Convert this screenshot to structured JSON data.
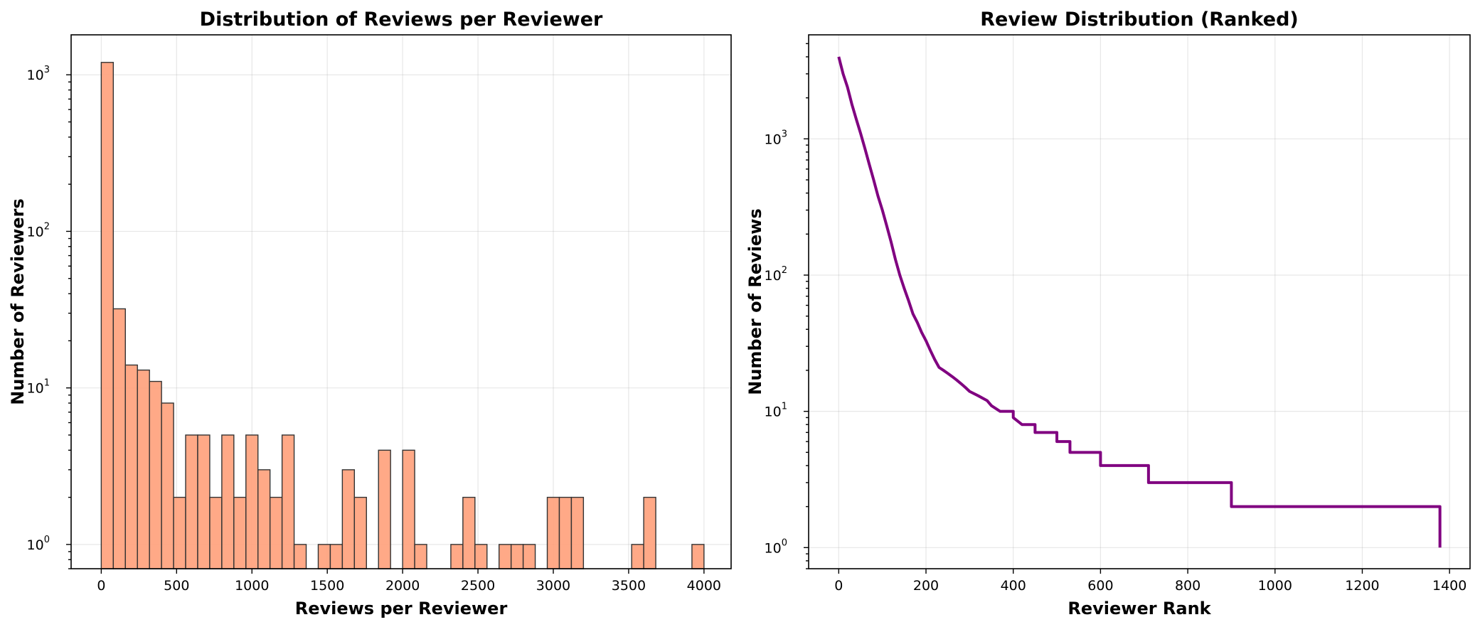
{
  "chart_data": [
    {
      "type": "bar",
      "title": "Distribution of Reviews per Reviewer",
      "xlabel": "Reviews per Reviewer",
      "ylabel": "Number of Reviewers",
      "y_scale": "log",
      "xlim": [
        -200,
        4180
      ],
      "ylim": [
        0.7,
        1800
      ],
      "grid": true,
      "color": "#FFA07A",
      "edge_color": "#333333",
      "bin_width": 80,
      "x_ticks": [
        0,
        500,
        1000,
        1500,
        2000,
        2500,
        3000,
        3500,
        4000
      ],
      "x_tick_labels": [
        "0",
        "500",
        "1000",
        "1500",
        "2000",
        "2500",
        "3000",
        "3500",
        "4000"
      ],
      "y_ticks": [
        1,
        10,
        100,
        1000
      ],
      "y_tick_labels": [
        {
          "base": "10",
          "exp": "0"
        },
        {
          "base": "10",
          "exp": "1"
        },
        {
          "base": "10",
          "exp": "2"
        },
        {
          "base": "10",
          "exp": "3"
        }
      ],
      "bins": [
        {
          "x": 0,
          "count": 1200
        },
        {
          "x": 80,
          "count": 32
        },
        {
          "x": 160,
          "count": 14
        },
        {
          "x": 240,
          "count": 13
        },
        {
          "x": 320,
          "count": 11
        },
        {
          "x": 400,
          "count": 8
        },
        {
          "x": 480,
          "count": 2
        },
        {
          "x": 560,
          "count": 5
        },
        {
          "x": 640,
          "count": 5
        },
        {
          "x": 720,
          "count": 2
        },
        {
          "x": 800,
          "count": 5
        },
        {
          "x": 880,
          "count": 2
        },
        {
          "x": 960,
          "count": 5
        },
        {
          "x": 1040,
          "count": 3
        },
        {
          "x": 1120,
          "count": 2
        },
        {
          "x": 1200,
          "count": 5
        },
        {
          "x": 1280,
          "count": 1
        },
        {
          "x": 1440,
          "count": 1
        },
        {
          "x": 1520,
          "count": 1
        },
        {
          "x": 1600,
          "count": 3
        },
        {
          "x": 1680,
          "count": 2
        },
        {
          "x": 1840,
          "count": 4
        },
        {
          "x": 2000,
          "count": 4
        },
        {
          "x": 2080,
          "count": 1
        },
        {
          "x": 2320,
          "count": 1
        },
        {
          "x": 2400,
          "count": 2
        },
        {
          "x": 2480,
          "count": 1
        },
        {
          "x": 2640,
          "count": 1
        },
        {
          "x": 2720,
          "count": 1
        },
        {
          "x": 2800,
          "count": 1
        },
        {
          "x": 2960,
          "count": 2
        },
        {
          "x": 3040,
          "count": 2
        },
        {
          "x": 3120,
          "count": 2
        },
        {
          "x": 3520,
          "count": 1
        },
        {
          "x": 3600,
          "count": 2
        },
        {
          "x": 3920,
          "count": 1
        }
      ]
    },
    {
      "type": "line",
      "title": "Review Distribution (Ranked)",
      "xlabel": "Reviewer Rank",
      "ylabel": "Number of Reviews",
      "y_scale": "log",
      "xlim": [
        -69,
        1447
      ],
      "ylim": [
        0.7,
        5800
      ],
      "grid": true,
      "color": "#800080",
      "x_ticks": [
        0,
        200,
        400,
        600,
        800,
        1000,
        1200,
        1400
      ],
      "x_tick_labels": [
        "0",
        "200",
        "400",
        "600",
        "800",
        "1000",
        "1200",
        "1400"
      ],
      "y_ticks": [
        1,
        10,
        100,
        1000
      ],
      "y_tick_labels": [
        {
          "base": "10",
          "exp": "0"
        },
        {
          "base": "10",
          "exp": "1"
        },
        {
          "base": "10",
          "exp": "2"
        },
        {
          "base": "10",
          "exp": "3"
        }
      ],
      "points": [
        [
          0,
          4000
        ],
        [
          10,
          3000
        ],
        [
          20,
          2400
        ],
        [
          30,
          1800
        ],
        [
          40,
          1400
        ],
        [
          50,
          1100
        ],
        [
          60,
          850
        ],
        [
          70,
          650
        ],
        [
          80,
          500
        ],
        [
          90,
          380
        ],
        [
          100,
          300
        ],
        [
          110,
          230
        ],
        [
          120,
          175
        ],
        [
          130,
          130
        ],
        [
          140,
          100
        ],
        [
          150,
          80
        ],
        [
          160,
          65
        ],
        [
          170,
          52
        ],
        [
          180,
          45
        ],
        [
          190,
          38
        ],
        [
          200,
          33
        ],
        [
          210,
          28
        ],
        [
          220,
          24
        ],
        [
          230,
          21
        ],
        [
          240,
          20
        ],
        [
          250,
          19
        ],
        [
          260,
          18
        ],
        [
          270,
          17
        ],
        [
          280,
          16
        ],
        [
          290,
          15
        ],
        [
          300,
          14
        ],
        [
          320,
          13
        ],
        [
          340,
          12
        ],
        [
          350,
          11
        ],
        [
          370,
          10
        ],
        [
          400,
          9
        ],
        [
          420,
          8
        ],
        [
          450,
          7
        ],
        [
          500,
          6
        ],
        [
          530,
          5
        ],
        [
          600,
          4
        ],
        [
          710,
          3
        ],
        [
          900,
          2
        ],
        [
          1378,
          1
        ]
      ]
    }
  ]
}
